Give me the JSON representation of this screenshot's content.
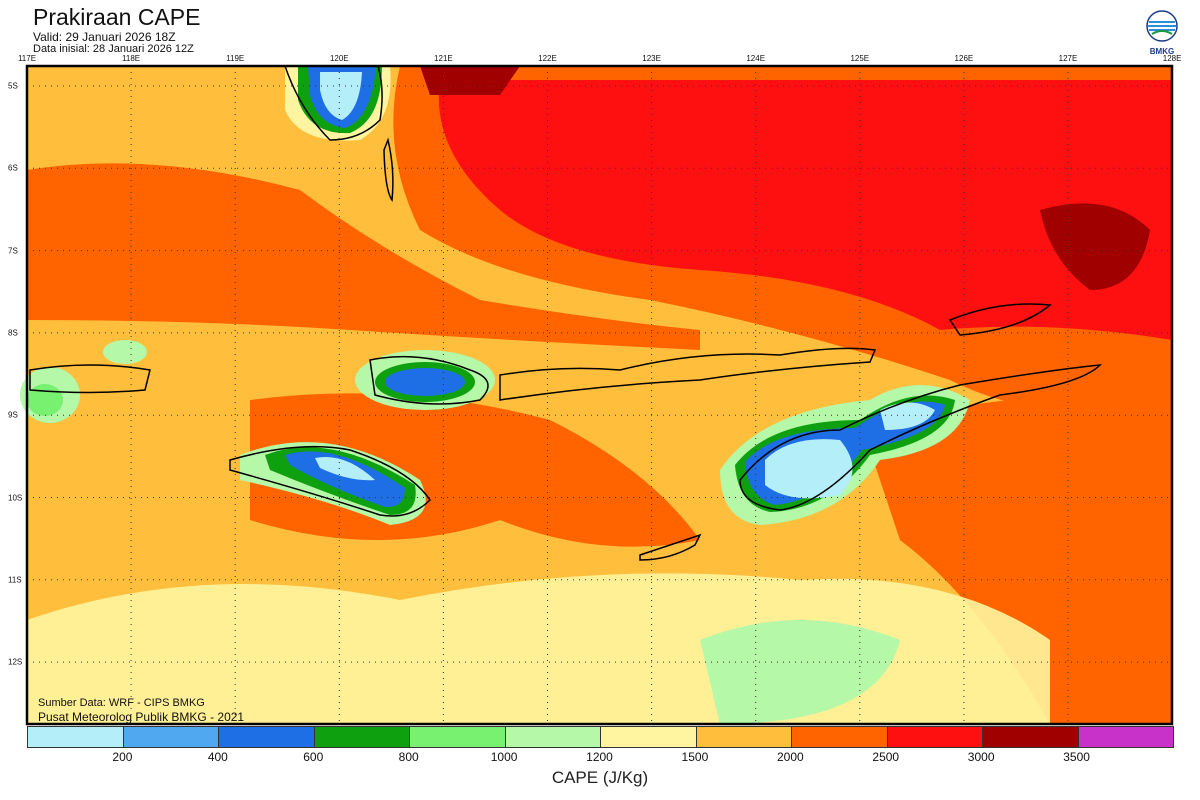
{
  "header": {
    "title": "Prakiraan CAPE",
    "valid": "Valid: 29 Januari 2026 18Z",
    "initial": "Data inisial: 28 Januari 2026 12Z",
    "logo_text": "BMKG"
  },
  "axes": {
    "lon_labels": [
      "117E",
      "118E",
      "119E",
      "120E",
      "121E",
      "122E",
      "123E",
      "124E",
      "125E",
      "126E",
      "127E",
      "128E"
    ],
    "lat_labels": [
      "5S",
      "6S",
      "7S",
      "8S",
      "9S",
      "10S",
      "11S",
      "12S"
    ]
  },
  "footer": {
    "source": "Sumber Data: WRF - CIPS BMKG",
    "credit": "Pusat Meteorolog Publik BMKG - 2021"
  },
  "legend": {
    "title": "CAPE (J/Kg)",
    "ticks": [
      "200",
      "400",
      "600",
      "800",
      "1000",
      "1200",
      "1500",
      "2000",
      "2500",
      "3000",
      "3500"
    ],
    "colors": [
      "#b4eef8",
      "#50a8f0",
      "#1e6ee6",
      "#0fa00f",
      "#78f070",
      "#b4f8a8",
      "#fff5a0",
      "#ffbe3c",
      "#ff6400",
      "#ff1010",
      "#a00000",
      "#c832c8"
    ]
  }
}
